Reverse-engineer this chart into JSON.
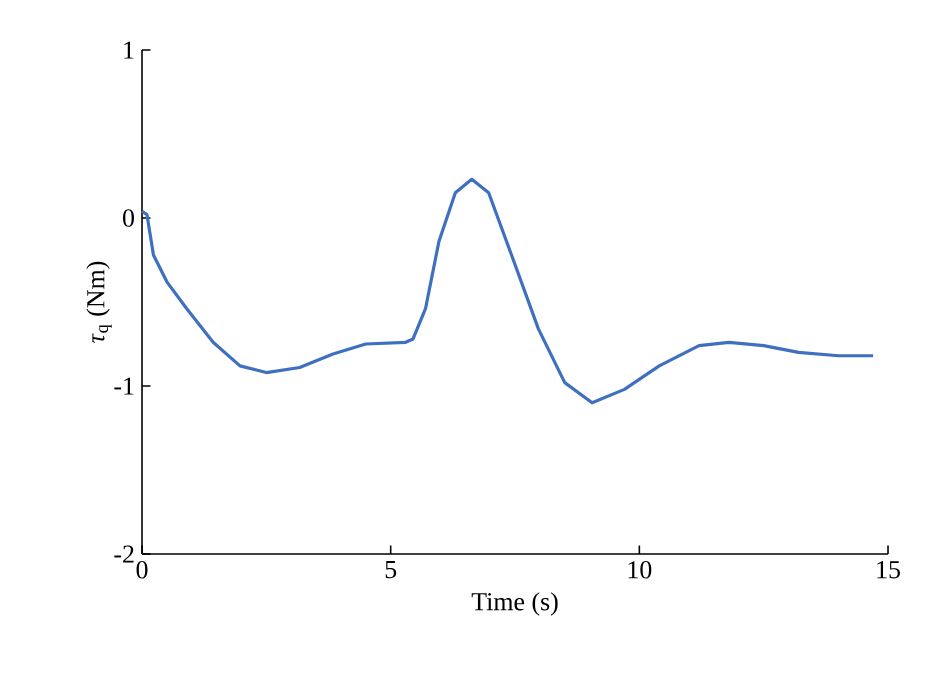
{
  "chart_data": {
    "type": "line",
    "xlabel": "Time (s)",
    "ylabel": "*τ*$_{q}$ (Nm)",
    "xlim": [
      0,
      15
    ],
    "ylim": [
      -2,
      1
    ],
    "xticks": [
      0,
      5,
      10,
      15
    ],
    "yticks": [
      -2,
      -1,
      0,
      1
    ],
    "grid": false,
    "marker": "none",
    "line_style": "solid",
    "series": [
      {
        "color": "#3f6fbf",
        "x": [
          0,
          0.1,
          0.23,
          0.5,
          0.9,
          1.43,
          1.97,
          2.5,
          3.17,
          3.84,
          4.5,
          5.3,
          5.45,
          5.7,
          5.97,
          6.3,
          6.63,
          6.97,
          7.43,
          7.97,
          8.5,
          9.05,
          9.7,
          10.4,
          11.2,
          11.8,
          12.5,
          13.2,
          14,
          14.7
        ],
        "values": [
          0.04,
          0.02,
          -0.22,
          -0.38,
          -0.54,
          -0.74,
          -0.88,
          -0.92,
          -0.89,
          -0.81,
          -0.75,
          -0.74,
          -0.72,
          -0.54,
          -0.14,
          0.15,
          0.23,
          0.15,
          -0.22,
          -0.66,
          -0.98,
          -1.1,
          -1.02,
          -0.88,
          -0.76,
          -0.74,
          -0.76,
          -0.8,
          -0.82,
          -0.82
        ]
      }
    ]
  }
}
